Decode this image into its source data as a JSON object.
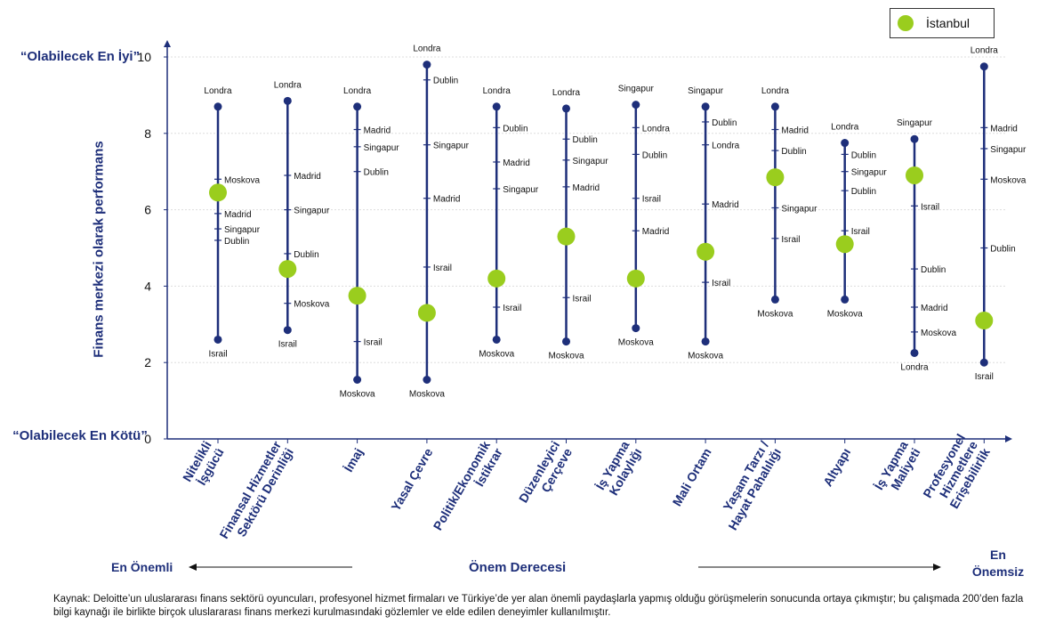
{
  "chart_data": {
    "type": "scatter",
    "ylabel": "Finans merkezi olarak performans",
    "ylim": [
      0,
      10
    ],
    "yticks": [
      0,
      2,
      4,
      6,
      8,
      10
    ],
    "ytop_label": "“Olabilecek En İyi”",
    "ybottom_label": "“Olabilecek En Kötü”",
    "legend": "İstanbul",
    "colors": {
      "axis": "#1E2F7A",
      "line": "#1E2F7A",
      "istanbul": "#9ACD1E",
      "grid": "#dddddd"
    },
    "categories": [
      {
        "label": "Nitelikli İşgücü",
        "lines": [
          "Nitelikli",
          "İşgücü"
        ],
        "istanbul": 6.45,
        "points": [
          {
            "city": "Londra",
            "value": 8.7,
            "end": true
          },
          {
            "city": "Moskova",
            "value": 6.8
          },
          {
            "city": "Madrid",
            "value": 5.9
          },
          {
            "city": "Singapur",
            "value": 5.5
          },
          {
            "city": "Dublin",
            "value": 5.2
          },
          {
            "city": "Israil",
            "value": 2.6,
            "end": true
          }
        ]
      },
      {
        "label": "Finansal Hizmetler Sektörü Derinliği",
        "lines": [
          "Finansal Hizmetler",
          "Sektörü Derinliği"
        ],
        "istanbul": 4.45,
        "points": [
          {
            "city": "Londra",
            "value": 8.85,
            "end": true
          },
          {
            "city": "Madrid",
            "value": 6.9
          },
          {
            "city": "Singapur",
            "value": 6.0
          },
          {
            "city": "Dublin",
            "value": 4.85
          },
          {
            "city": "Moskova",
            "value": 3.55
          },
          {
            "city": "Israil",
            "value": 2.85,
            "end": true
          }
        ]
      },
      {
        "label": "İmaj",
        "lines": [
          "İmaj"
        ],
        "istanbul": 3.75,
        "points": [
          {
            "city": "Londra",
            "value": 8.7,
            "end": true
          },
          {
            "city": "Madrid",
            "value": 8.1
          },
          {
            "city": "Singapur",
            "value": 7.65
          },
          {
            "city": "Dublin",
            "value": 7.0
          },
          {
            "city": "Israil",
            "value": 2.55
          },
          {
            "city": "Moskova",
            "value": 1.55,
            "end": true
          }
        ]
      },
      {
        "label": "Yasal Çevre",
        "lines": [
          "Yasal Çevre"
        ],
        "istanbul": 3.3,
        "points": [
          {
            "city": "Londra",
            "value": 9.8,
            "end": true
          },
          {
            "city": "Dublin",
            "value": 9.4
          },
          {
            "city": "Singapur",
            "value": 7.7
          },
          {
            "city": "Madrid",
            "value": 6.3
          },
          {
            "city": "Israil",
            "value": 4.5
          },
          {
            "city": "Moskova",
            "value": 1.55,
            "end": true
          }
        ]
      },
      {
        "label": "Politik/Ekonomik İstikrar",
        "lines": [
          "Politik/Ekonomik",
          "İstikrar"
        ],
        "istanbul": 4.2,
        "points": [
          {
            "city": "Londra",
            "value": 8.7,
            "end": true
          },
          {
            "city": "Dublin",
            "value": 8.15
          },
          {
            "city": "Madrid",
            "value": 7.25
          },
          {
            "city": "Singapur",
            "value": 6.55
          },
          {
            "city": "Israil",
            "value": 3.45
          },
          {
            "city": "Moskova",
            "value": 2.6,
            "end": true
          }
        ]
      },
      {
        "label": "Düzenleyici Çerçeve",
        "lines": [
          "Düzenleyici",
          "Çerçeve"
        ],
        "istanbul": 5.3,
        "points": [
          {
            "city": "Londra",
            "value": 8.65,
            "end": true
          },
          {
            "city": "Dublin",
            "value": 7.85
          },
          {
            "city": "Singapur",
            "value": 7.3
          },
          {
            "city": "Madrid",
            "value": 6.6
          },
          {
            "city": "Israil",
            "value": 3.7
          },
          {
            "city": "Moskova",
            "value": 2.55,
            "end": true
          }
        ]
      },
      {
        "label": "İş Yapma Kolaylığı",
        "lines": [
          "İş Yapma",
          "Kolaylığı"
        ],
        "istanbul": 4.2,
        "points": [
          {
            "city": "Singapur",
            "value": 8.75,
            "end": true
          },
          {
            "city": "Londra",
            "value": 8.15
          },
          {
            "city": "Dublin",
            "value": 7.45
          },
          {
            "city": "Israil",
            "value": 6.3
          },
          {
            "city": "Madrid",
            "value": 5.45
          },
          {
            "city": "Moskova",
            "value": 2.9,
            "end": true
          }
        ]
      },
      {
        "label": "Mali Ortam",
        "lines": [
          "Mali Ortam"
        ],
        "istanbul": 4.9,
        "points": [
          {
            "city": "Singapur",
            "value": 8.7,
            "end": true
          },
          {
            "city": "Dublin",
            "value": 8.3
          },
          {
            "city": "Londra",
            "value": 7.7
          },
          {
            "city": "Madrid",
            "value": 6.15
          },
          {
            "city": "Israil",
            "value": 4.1
          },
          {
            "city": "Moskova",
            "value": 2.55,
            "end": true
          }
        ]
      },
      {
        "label": "Yaşam Tarzı / Hayat Pahalılığı",
        "lines": [
          "Yaşam Tarzı /",
          "Hayat Pahalılığı"
        ],
        "istanbul": 6.85,
        "points": [
          {
            "city": "Londra",
            "value": 8.7,
            "end": true
          },
          {
            "city": "Madrid",
            "value": 8.1
          },
          {
            "city": "Dublin",
            "value": 7.55
          },
          {
            "city": "Singapur",
            "value": 6.05
          },
          {
            "city": "Israil",
            "value": 5.25
          },
          {
            "city": "Moskova",
            "value": 3.65,
            "end": true
          }
        ]
      },
      {
        "label": "Altyapı",
        "lines": [
          "Altyapı"
        ],
        "istanbul": 5.1,
        "points": [
          {
            "city": "Londra",
            "value": 7.75,
            "end": true
          },
          {
            "city": "Dublin",
            "value": 7.45
          },
          {
            "city": "Singapur",
            "value": 7.0
          },
          {
            "city": "Dublin",
            "value": 6.5
          },
          {
            "city": "Israil",
            "value": 5.45
          },
          {
            "city": "Moskova",
            "value": 3.65,
            "end": true
          }
        ]
      },
      {
        "label": "İş Yapma Maliyeti",
        "lines": [
          "İş Yapma",
          "Maliyeti"
        ],
        "istanbul": 6.9,
        "points": [
          {
            "city": "Singapur",
            "value": 7.85,
            "end": true
          },
          {
            "city": "Israil",
            "value": 6.1
          },
          {
            "city": "Dublin",
            "value": 4.45
          },
          {
            "city": "Madrid",
            "value": 3.45
          },
          {
            "city": "Moskova",
            "value": 2.8
          },
          {
            "city": "Londra",
            "value": 2.25,
            "end": true
          }
        ]
      },
      {
        "label": "Profesyonel Hizmetlere Erişebilirlik",
        "lines": [
          "Profesyonel",
          "Hizmetlere",
          "Erişebilirlik"
        ],
        "istanbul": 3.1,
        "points": [
          {
            "city": "Londra",
            "value": 9.75,
            "end": true
          },
          {
            "city": "Madrid",
            "value": 8.15
          },
          {
            "city": "Singapur",
            "value": 7.6
          },
          {
            "city": "Moskova",
            "value": 6.8
          },
          {
            "city": "Dublin",
            "value": 5.0
          },
          {
            "city": "Israil",
            "value": 2.0,
            "end": true
          }
        ]
      }
    ]
  },
  "importance": {
    "most": "En Önemli",
    "center": "Önem Derecesi",
    "least_line1": "En",
    "least_line2": "Önemsiz"
  },
  "source_note": "Kaynak: Deloitte’un uluslararası finans sektörü oyuncuları, profesyonel hizmet firmaları ve Türkiye’de yer alan önemli paydaşlarla yapmış olduğu görüşmelerin  sonucunda ortaya çıkmıştır; bu çalışmada 200’den fazla bilgi kaynağı ile birlikte birçok uluslararası finans merkezi kurulmasındaki gözlemler ve elde edilen deneyimler kullanılmıştır."
}
